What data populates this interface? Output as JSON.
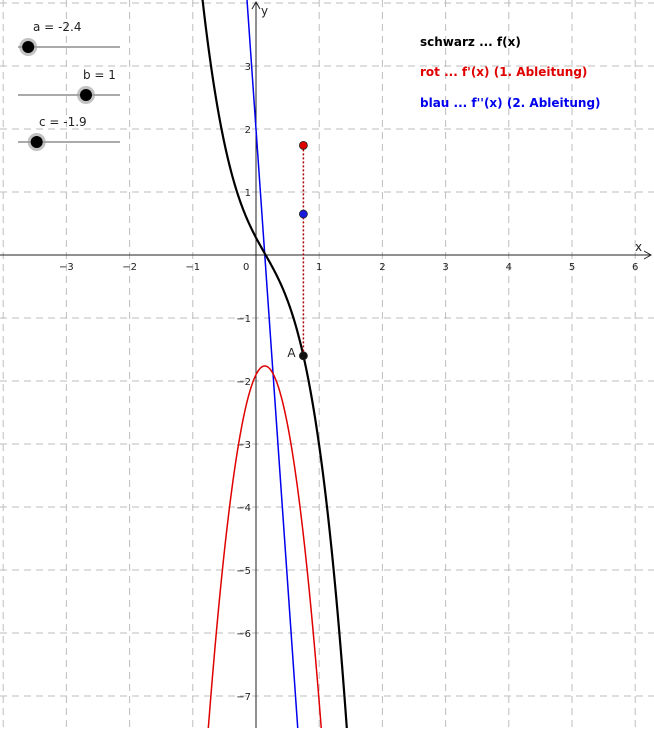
{
  "chart_data": {
    "type": "line",
    "x_axis_label": "x",
    "y_axis_label": "y",
    "xlim": [
      -4.05,
      6.3
    ],
    "ylim": [
      -7.5,
      4.05
    ],
    "grid": true,
    "x_ticks": [
      "−3",
      "−2",
      "−1",
      "1",
      "2",
      "3",
      "4",
      "5",
      "6"
    ],
    "x_tick_values": [
      -3,
      -2,
      -1,
      1,
      2,
      3,
      4,
      5,
      6
    ],
    "y_ticks": [
      "3",
      "2",
      "1",
      "−1",
      "−2",
      "−3",
      "−4",
      "−5",
      "−6",
      "−7"
    ],
    "y_tick_values": [
      3,
      2,
      1,
      -1,
      -2,
      -3,
      -4,
      -5,
      -6,
      -7
    ],
    "origin_label": "0",
    "parameters": {
      "a": -2.4,
      "b": 1,
      "c": -1.9
    },
    "series": [
      {
        "name": "schwarz ... f(x)",
        "color": "#000000"
      },
      {
        "name": "rot ... f'(x) (1. Ableitung)",
        "color": "#e00000"
      },
      {
        "name": "blau ... f''(x) (2. Ableitung)",
        "color": "#0000ee"
      }
    ],
    "point_A": {
      "label": "A",
      "x": 0.75,
      "y": -1.6
    },
    "point_f1": {
      "x": 0.75,
      "y": 1.74
    },
    "point_f2": {
      "x": 0.75,
      "y": 0.65
    }
  },
  "sliders": [
    {
      "label": "a = -2.4",
      "value": -2.4,
      "min": -3,
      "max": 3
    },
    {
      "label": "b = 1",
      "value": 1,
      "min": -3,
      "max": 3
    },
    {
      "label": "c = -1.9",
      "value": -1.9,
      "min": -3,
      "max": 3
    }
  ],
  "legend": {
    "black": "schwarz ... f(x)",
    "red": "rot ... f'(x) (1. Ableitung)",
    "blue": "blau ... f''(x) (2. Ableitung)"
  },
  "colors": {
    "black": "#000000",
    "red": "#e00000",
    "blue": "#0000ee",
    "grid": "#bdbdbd",
    "point_red": "#dd0000",
    "point_blue": "#1a1add"
  }
}
